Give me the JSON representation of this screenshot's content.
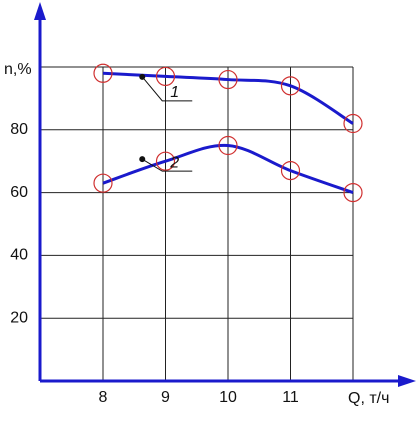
{
  "chart_data": {
    "type": "line",
    "x_label": "Q, т/ч",
    "y_label": "n,%",
    "categories": [
      "8",
      "9",
      "10",
      "11",
      null
    ],
    "series": [
      {
        "name": "1",
        "color": "#1a1acc",
        "values": [
          98,
          97,
          96,
          94,
          82
        ]
      },
      {
        "name": "2",
        "color": "#1a1acc",
        "values": [
          63,
          70,
          75,
          67,
          60
        ]
      }
    ],
    "marker_color": "#d03030",
    "ylim": [
      0,
      100
    ],
    "yticks": [
      20,
      40,
      60,
      80
    ],
    "grid": true
  }
}
